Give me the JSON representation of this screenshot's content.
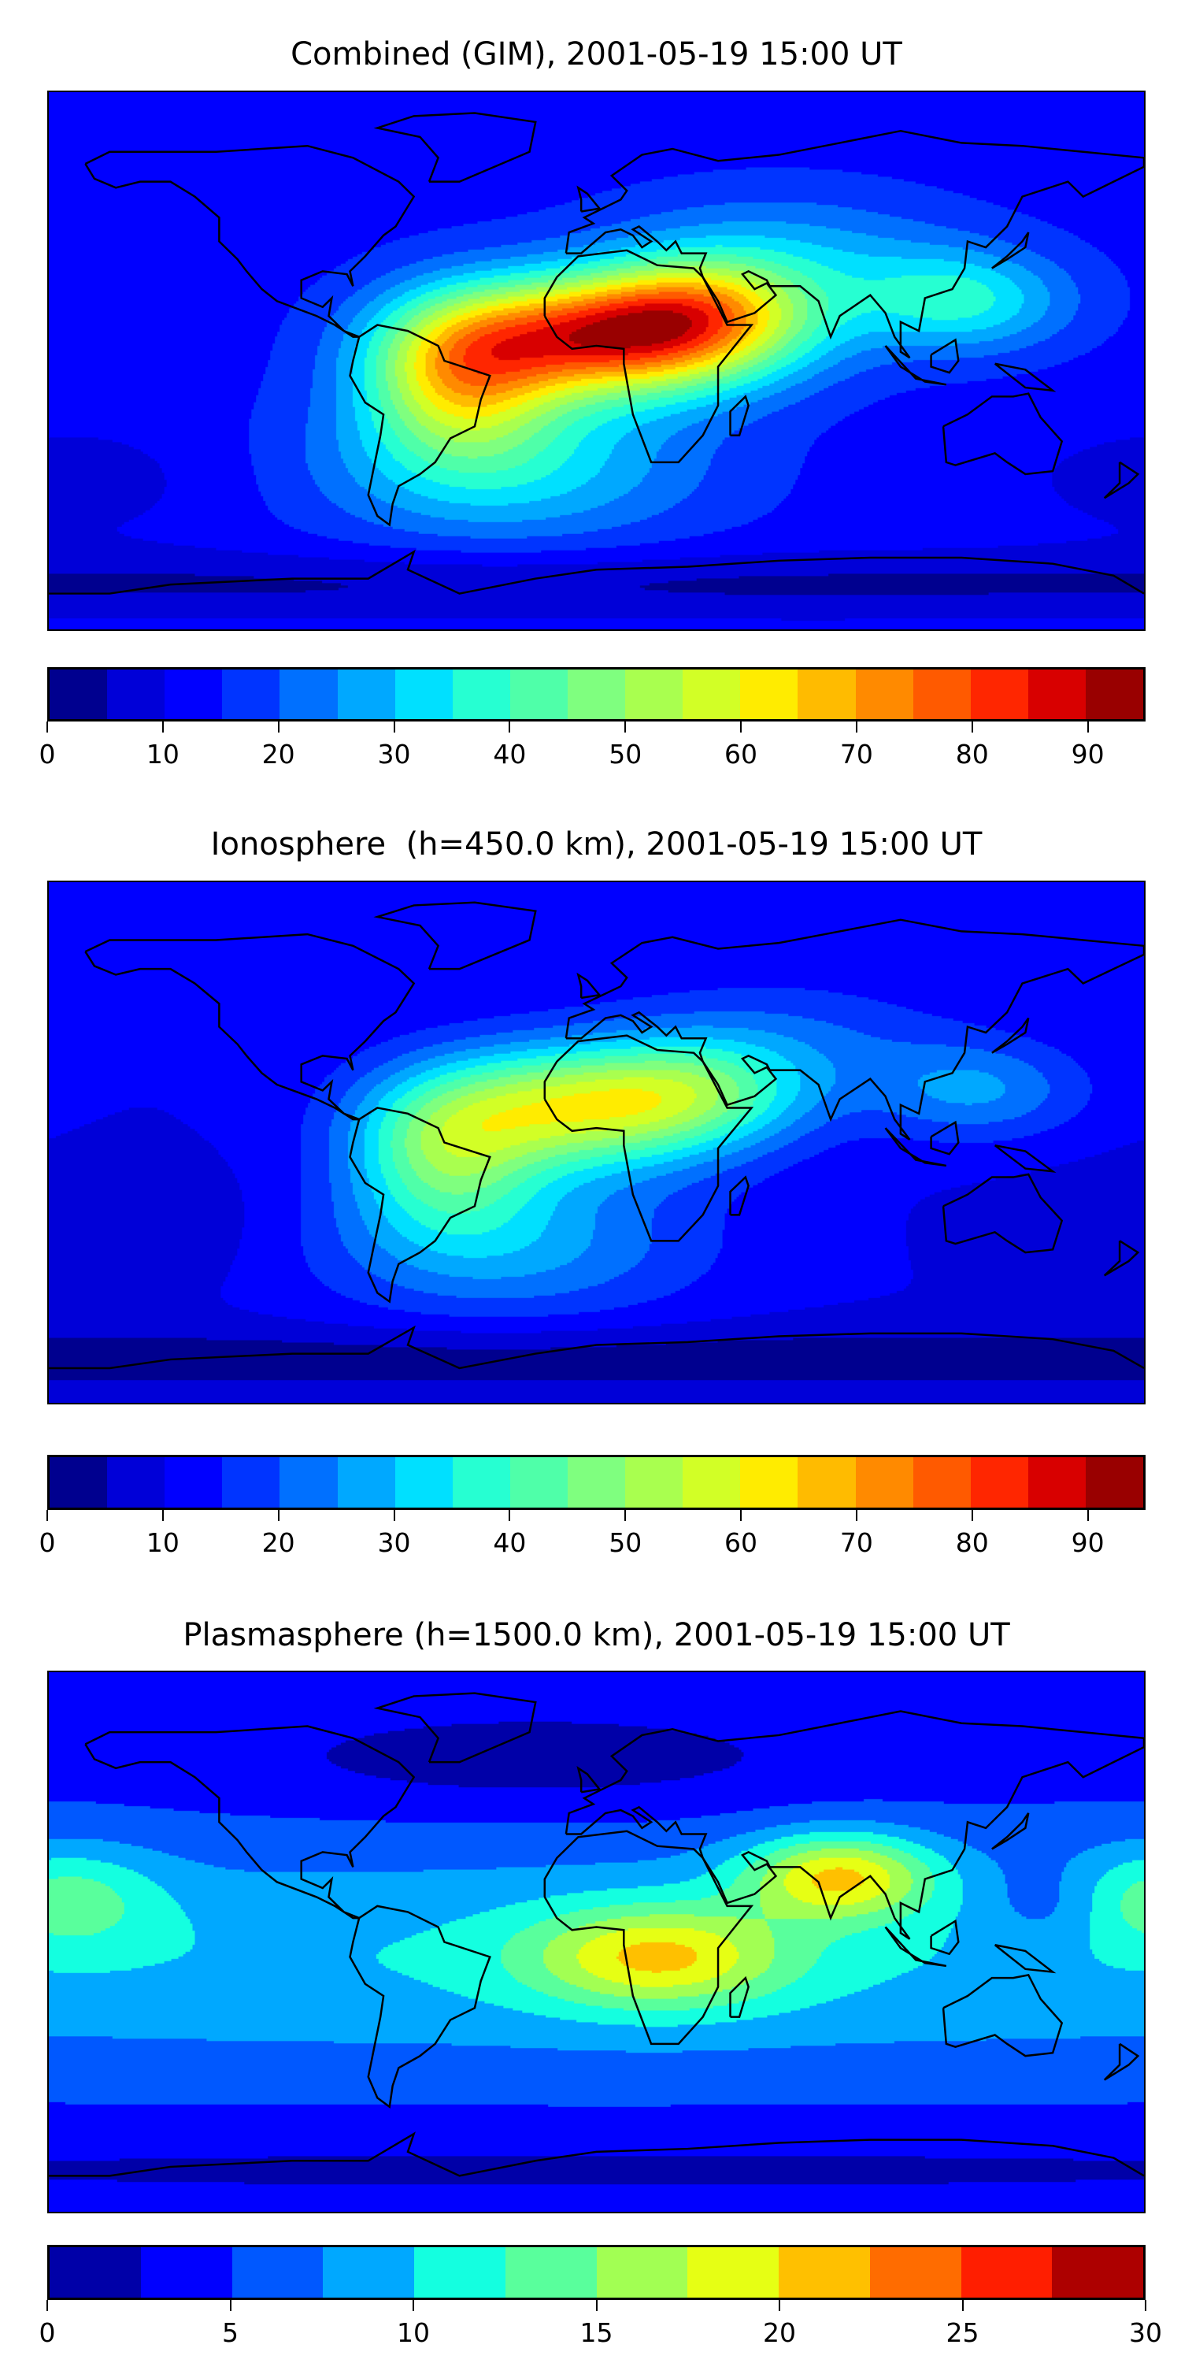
{
  "chart_data": [
    {
      "type": "heatmap",
      "title": "Combined (GIM), 2001-05-19 15:00 UT",
      "xlabel": "",
      "ylabel": "",
      "colorbar": {
        "min": 0,
        "max": 95,
        "step": 5,
        "ticks": [
          "0",
          "10",
          "20",
          "30",
          "40",
          "50",
          "60",
          "70",
          "80",
          "90"
        ],
        "tick_values": [
          0,
          10,
          20,
          30,
          40,
          50,
          60,
          70,
          80,
          90
        ],
        "colors": [
          "#00008f",
          "#0000d8",
          "#0000ff",
          "#0034ff",
          "#0070ff",
          "#00a8ff",
          "#00e0ff",
          "#26ffd2",
          "#4fffa9",
          "#7fff7f",
          "#a9ff4f",
          "#d2ff26",
          "#ffec00",
          "#ffbb00",
          "#ff8a00",
          "#ff5a00",
          "#ff2600",
          "#d80000",
          "#990000"
        ]
      },
      "field": {
        "base": 13,
        "blobs": [
          {
            "lon": 5,
            "lat": 8,
            "amp": 68,
            "slon": 38,
            "slat": 14
          },
          {
            "lon": -45,
            "lat": -5,
            "amp": 40,
            "slon": 22,
            "slat": 18
          },
          {
            "lon": 35,
            "lat": 18,
            "amp": 25,
            "slon": 25,
            "slat": 12
          },
          {
            "lon": -30,
            "lat": -35,
            "amp": 20,
            "slon": 45,
            "slat": 18
          },
          {
            "lon": 120,
            "lat": 20,
            "amp": 22,
            "slon": 25,
            "slat": 12
          },
          {
            "lon": 60,
            "lat": 35,
            "amp": 14,
            "slon": 40,
            "slat": 15
          },
          {
            "lon": 0,
            "lat": -75,
            "amp": -9,
            "slon": 400,
            "slat": 8
          },
          {
            "lon": -170,
            "lat": -40,
            "amp": -5,
            "slon": 40,
            "slat": 15
          }
        ]
      }
    },
    {
      "type": "heatmap",
      "title": "Ionosphere  (h=450.0 km), 2001-05-19 15:00 UT",
      "xlabel": "",
      "ylabel": "",
      "colorbar": {
        "min": 0,
        "max": 95,
        "step": 5,
        "ticks": [
          "0",
          "10",
          "20",
          "30",
          "40",
          "50",
          "60",
          "70",
          "80",
          "90"
        ],
        "tick_values": [
          0,
          10,
          20,
          30,
          40,
          50,
          60,
          70,
          80,
          90
        ],
        "colors": [
          "#00008f",
          "#0000d8",
          "#0000ff",
          "#0034ff",
          "#0070ff",
          "#00a8ff",
          "#00e0ff",
          "#26ffd2",
          "#4fffa9",
          "#7fff7f",
          "#a9ff4f",
          "#d2ff26",
          "#ffec00",
          "#ffbb00",
          "#ff8a00",
          "#ff5a00",
          "#ff2600",
          "#d80000",
          "#990000"
        ]
      },
      "field": {
        "base": 10,
        "blobs": [
          {
            "lon": -5,
            "lat": 12,
            "amp": 45,
            "slon": 38,
            "slat": 15
          },
          {
            "lon": -50,
            "lat": -5,
            "amp": 28,
            "slon": 22,
            "slat": 18
          },
          {
            "lon": 35,
            "lat": 18,
            "amp": 15,
            "slon": 25,
            "slat": 12
          },
          {
            "lon": -30,
            "lat": -35,
            "amp": 17,
            "slon": 45,
            "slat": 18
          },
          {
            "lon": 125,
            "lat": 18,
            "amp": 15,
            "slon": 25,
            "slat": 12
          },
          {
            "lon": 60,
            "lat": 35,
            "amp": 10,
            "slon": 40,
            "slat": 15
          },
          {
            "lon": 0,
            "lat": -75,
            "amp": -8,
            "slon": 400,
            "slat": 8
          },
          {
            "lon": -160,
            "lat": -30,
            "amp": -5,
            "slon": 40,
            "slat": 15
          }
        ]
      }
    },
    {
      "type": "heatmap",
      "title": "Plasmasphere (h=1500.0 km), 2001-05-19 15:00 UT",
      "xlabel": "",
      "ylabel": "",
      "colorbar": {
        "min": 0,
        "max": 30,
        "step": 2.5,
        "ticks": [
          "0",
          "5",
          "10",
          "15",
          "20",
          "25",
          "30"
        ],
        "tick_values": [
          0,
          5,
          10,
          15,
          20,
          25,
          30
        ],
        "colors": [
          "#0000a8",
          "#0000ff",
          "#0058ff",
          "#00a8ff",
          "#14ffe0",
          "#59ff9c",
          "#a2ff53",
          "#e6ff14",
          "#ffc000",
          "#ff6c00",
          "#ff1e00",
          "#ad0000"
        ]
      },
      "field": {
        "base": 4,
        "blobs": [
          {
            "lon": 0,
            "lat": -5,
            "amp": 6,
            "slon": 400,
            "slat": 28
          },
          {
            "lon": 20,
            "lat": -5,
            "amp": 11,
            "slon": 30,
            "slat": 12
          },
          {
            "lon": 80,
            "lat": 22,
            "amp": 13,
            "slon": 22,
            "slat": 10
          },
          {
            "lon": -175,
            "lat": 15,
            "amp": 6,
            "slon": 22,
            "slat": 12
          },
          {
            "lon": -20,
            "lat": 60,
            "amp": -3,
            "slon": 70,
            "slat": 12
          },
          {
            "lon": 0,
            "lat": -75,
            "amp": -2,
            "slon": 400,
            "slat": 10
          },
          {
            "lon": 150,
            "lat": 12,
            "amp": -3,
            "slon": 15,
            "slat": 10
          }
        ]
      }
    }
  ]
}
